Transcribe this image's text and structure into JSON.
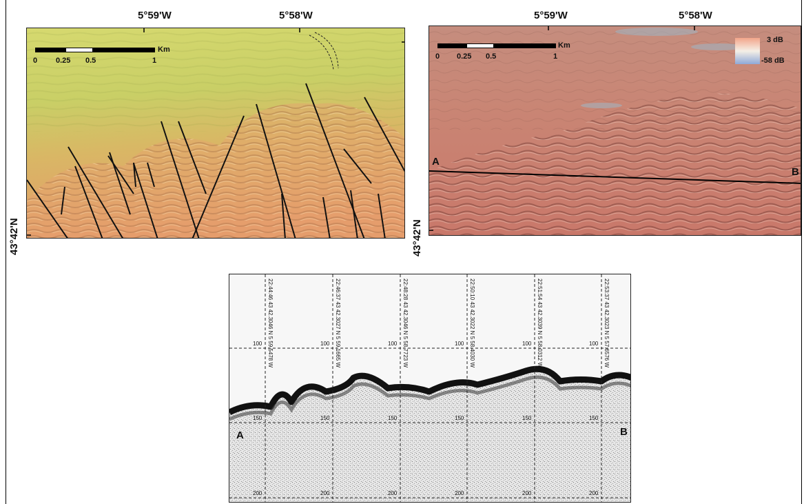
{
  "map_left": {
    "lon_labels": [
      "5°59'W",
      "5°58'W"
    ],
    "lat_label": "43°42'N",
    "scale": {
      "unit": "Km",
      "ticks": [
        "0",
        "0.25",
        "0.5",
        "1"
      ]
    }
  },
  "map_right": {
    "lon_labels": [
      "5°59'W",
      "5°58'W"
    ],
    "lat_label": "43°42'N",
    "scale": {
      "unit": "Km",
      "ticks": [
        "0",
        "0.25",
        "0.5",
        "1"
      ]
    },
    "legend": {
      "max": "3 dB",
      "min": "-58 dB",
      "colors": [
        "#f2a58a",
        "#f5efe6",
        "#8fa9d8"
      ]
    },
    "profile_endpoints": [
      "A",
      "B"
    ]
  },
  "profile": {
    "endpoint_left": "A",
    "endpoint_right": "B",
    "fixes": [
      "22:44:46   43 42.3046 N  5 59.5478 W",
      "22:46:37   43 42.3027 N  5 59.1665 W",
      "22:48:28   43 42.3046 N  5 58.7723 W",
      "22:50:10   43 42.3022 N  5 58.4030 W",
      "22:51:54   43 42.3039 N  5 58.0312 W",
      "22:53:37   43 42.3023 N  5 57.6576 W"
    ],
    "depth_labels": [
      "100",
      "150",
      "200"
    ]
  }
}
